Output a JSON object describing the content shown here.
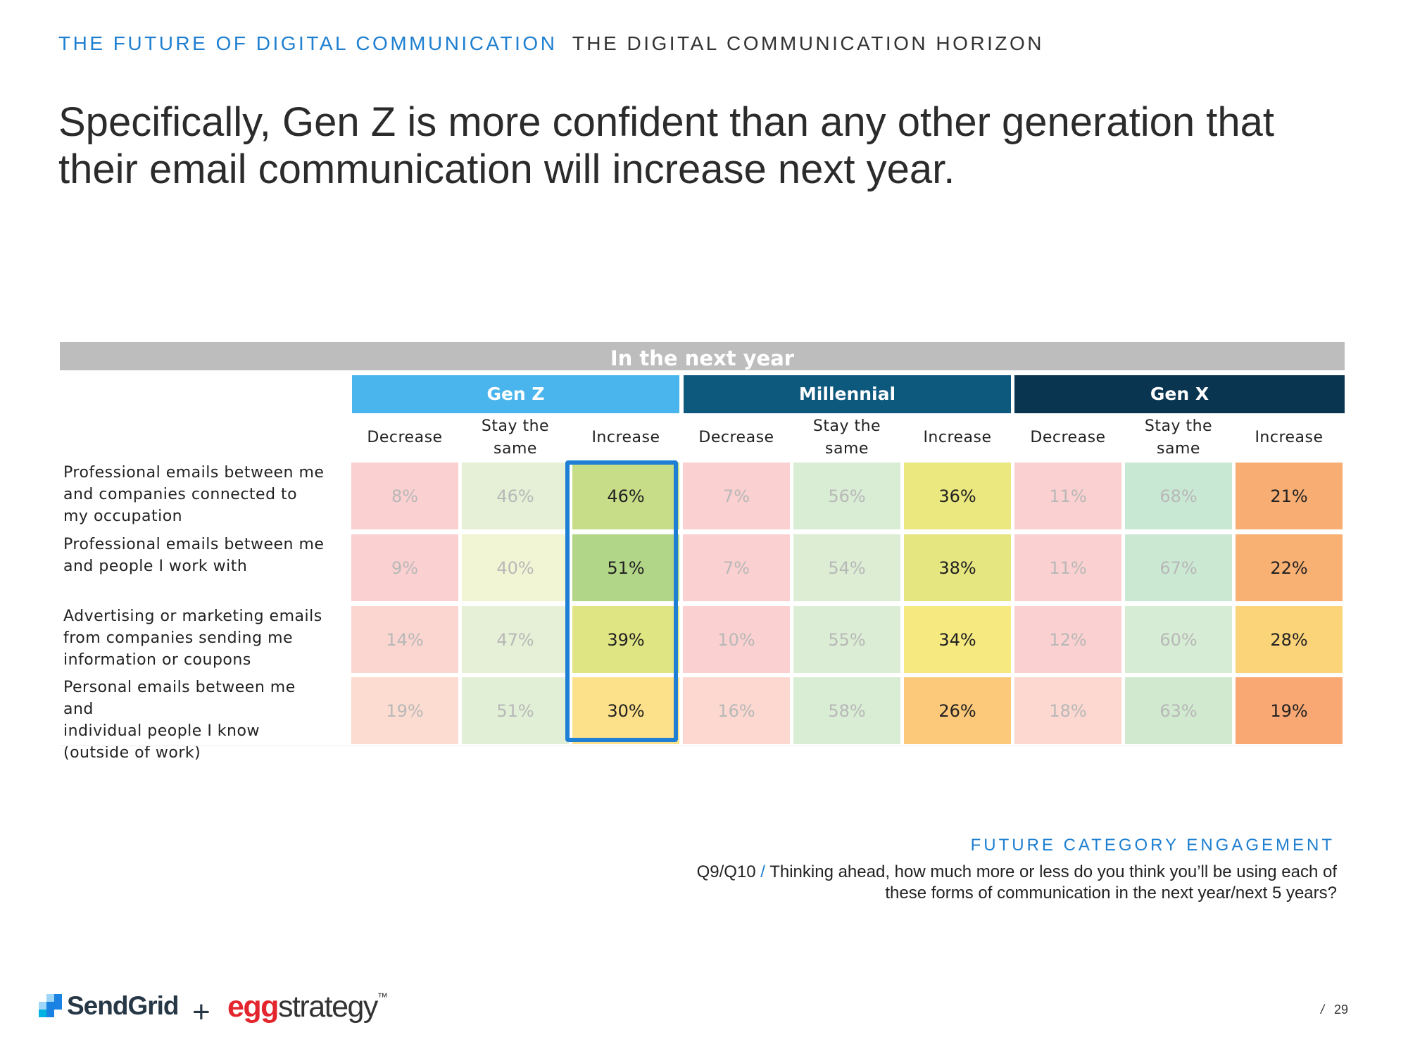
{
  "header": {
    "section": "THE FUTURE OF DIGITAL COMMUNICATION",
    "chapter": "THE DIGITAL COMMUNICATION HORIZON"
  },
  "headline": "Specifically, Gen Z is more confident than any other generation that their email communication will increase next year.",
  "table": {
    "period": "In the next year",
    "generations": [
      {
        "name": "Gen Z",
        "color": "#4ab5ec"
      },
      {
        "name": "Millennial",
        "color": "#0d587d"
      },
      {
        "name": "Gen X",
        "color": "#0a3550"
      }
    ],
    "columns": [
      {
        "label": "Decrease",
        "line1": "Decrease",
        "line2": ""
      },
      {
        "label": "Stay the same",
        "line1": "Stay the",
        "line2": "same"
      },
      {
        "label": "Increase",
        "line1": "Increase",
        "line2": ""
      },
      {
        "label": "Decrease",
        "line1": "Decrease",
        "line2": ""
      },
      {
        "label": "Stay the same",
        "line1": "Stay the",
        "line2": "same"
      },
      {
        "label": "Increase",
        "line1": "Increase",
        "line2": ""
      },
      {
        "label": "Decrease",
        "line1": "Decrease",
        "line2": ""
      },
      {
        "label": "Stay the same",
        "line1": "Stay the",
        "line2": "same"
      },
      {
        "label": "Increase",
        "line1": "Increase",
        "line2": ""
      }
    ],
    "rows": [
      {
        "label": "Professional emails between me and companies connected to my occupation",
        "lines": [
          "Professional emails between me",
          "and companies connected to",
          "my occupation"
        ],
        "values": [
          "8%",
          "46%",
          "46%",
          "7%",
          "56%",
          "36%",
          "11%",
          "68%",
          "21%"
        ],
        "colors": [
          "#fbd0d0",
          "#e5f0d6",
          "#c7dd87",
          "#fbd0d0",
          "#d9edd4",
          "#ebe87f",
          "#fbd0d0",
          "#c9e8d3",
          "#f8ad73"
        ]
      },
      {
        "label": "Professional emails between me and people I work with",
        "lines": [
          "Professional emails between me",
          "and people I work with"
        ],
        "values": [
          "9%",
          "40%",
          "51%",
          "7%",
          "54%",
          "38%",
          "11%",
          "67%",
          "22%"
        ],
        "colors": [
          "#fbd0d0",
          "#f1f5d4",
          "#b2d687",
          "#fbd0d0",
          "#dcedd4",
          "#e5e67f",
          "#fbd0d0",
          "#cbe8d3",
          "#f9b073"
        ]
      },
      {
        "label": "Advertising or marketing emails from companies sending me information or coupons",
        "lines": [
          "Advertising or marketing emails",
          "from companies sending me",
          "information or coupons"
        ],
        "values": [
          "14%",
          "47%",
          "39%",
          "10%",
          "55%",
          "34%",
          "12%",
          "60%",
          "28%"
        ],
        "colors": [
          "#fbd6d0",
          "#e6f0d6",
          "#e0e584",
          "#fbd0d0",
          "#dbedd4",
          "#f6e980",
          "#fbd0d0",
          "#d6ecd4",
          "#fbd47a"
        ]
      },
      {
        "label": "Personal emails between me and individual people I know (outside of work)",
        "lines": [
          "Personal emails between me and",
          "individual people I know",
          "(outside of work)"
        ],
        "values": [
          "19%",
          "51%",
          "30%",
          "16%",
          "58%",
          "26%",
          "18%",
          "63%",
          "19%"
        ],
        "colors": [
          "#fcdcd0",
          "#e1efd6",
          "#fde18a",
          "#fcd8d0",
          "#d9edd4",
          "#fcc87a",
          "#fcd8d0",
          "#d1eacf",
          "#f9a773"
        ]
      }
    ],
    "emphasis": [
      false,
      false,
      true,
      false,
      false,
      true,
      false,
      false,
      true
    ]
  },
  "source": {
    "title": "FUTURE CATEGORY ENGAGEMENT",
    "question_id": "Q9/Q10",
    "slash": "/",
    "question_line1": "Thinking ahead, how much more or less do you think you’ll be using each of",
    "question_line2": "these forms of communication in the next year/next 5 years?"
  },
  "footer": {
    "logo_sendgrid": "SendGrid",
    "plus": "+",
    "logo_egg_prefix": "egg",
    "logo_egg_suffix": "strategy",
    "logo_tm": "™",
    "page_sep": "/",
    "page_number": "29"
  }
}
